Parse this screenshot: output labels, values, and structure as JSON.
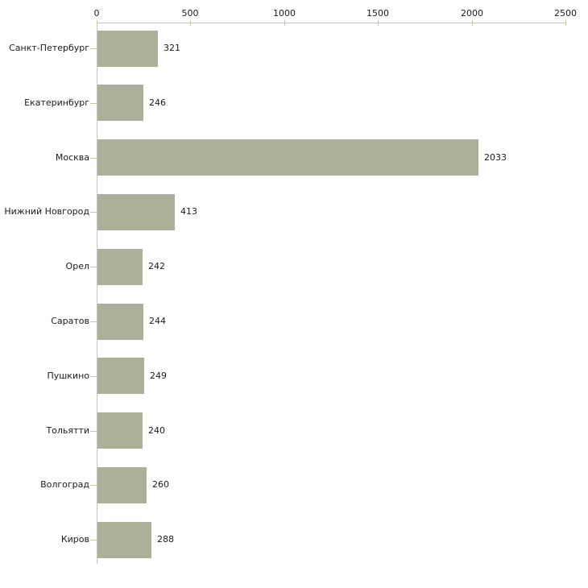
{
  "chart_data": {
    "type": "bar",
    "orientation": "horizontal",
    "title": "",
    "xlabel": "",
    "ylabel": "",
    "categories": [
      "Санкт-Петербург",
      "Екатеринбург",
      "Москва",
      "Нижний Новгород",
      "Орел",
      "Саратов",
      "Пушкино",
      "Тольятти",
      "Волгоград",
      "Киров"
    ],
    "values": [
      321,
      246,
      2033,
      413,
      242,
      244,
      249,
      240,
      260,
      288
    ],
    "value_labels": [
      "321",
      "246",
      "2033",
      "413",
      "242",
      "244",
      "249",
      "240",
      "260",
      "288"
    ],
    "x_ticks": [
      0,
      500,
      1000,
      1500,
      2000,
      2500
    ],
    "x_tick_labels": [
      "0",
      "500",
      "1000",
      "1500",
      "2000",
      "2500"
    ],
    "xlim": [
      0,
      2500
    ],
    "legend": null,
    "grid": false,
    "axis_position": "top",
    "colors": {
      "bar": "#abb199",
      "axis_line": "#c3c3c3",
      "tick": "#c5c5a0",
      "text": "#1a1a1a",
      "background": "#ffffff"
    }
  }
}
